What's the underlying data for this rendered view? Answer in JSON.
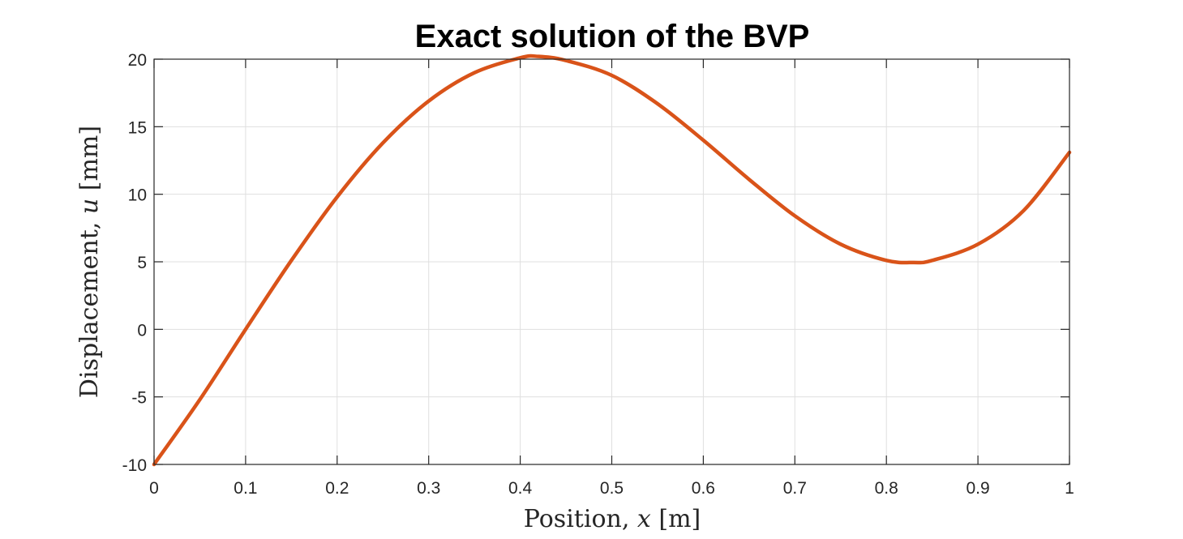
{
  "chart_data": {
    "type": "line",
    "title": "Exact solution of the BVP",
    "xlabel": {
      "text": "Position,",
      "var": "x",
      "unit": "[m]"
    },
    "ylabel": {
      "text": "Displacement,",
      "var": "u",
      "unit": "[mm]"
    },
    "xlim": [
      0,
      1
    ],
    "ylim": [
      -10,
      20
    ],
    "xticks": [
      0,
      0.1,
      0.2,
      0.3,
      0.4,
      0.5,
      0.6,
      0.7,
      0.8,
      0.9,
      1
    ],
    "xtick_labels": [
      "0",
      "0.1",
      "0.2",
      "0.3",
      "0.4",
      "0.5",
      "0.6",
      "0.7",
      "0.8",
      "0.9",
      "1"
    ],
    "yticks": [
      -10,
      -5,
      0,
      5,
      10,
      15,
      20
    ],
    "ytick_labels": [
      "-10",
      "-5",
      "0",
      "5",
      "10",
      "15",
      "20"
    ],
    "grid": true,
    "line_color": "#d95319",
    "series": [
      {
        "x": [
          0,
          0.05,
          0.1,
          0.15,
          0.2,
          0.25,
          0.3,
          0.35,
          0.4,
          0.42,
          0.45,
          0.5,
          0.55,
          0.6,
          0.65,
          0.7,
          0.75,
          0.8,
          0.83,
          0.85,
          0.9,
          0.95,
          1
        ],
        "values": [
          -10,
          -5.2,
          0,
          5.1,
          9.8,
          13.8,
          16.9,
          19.0,
          20.1,
          20.2,
          19.9,
          18.8,
          16.7,
          14.0,
          11.1,
          8.4,
          6.3,
          5.1,
          4.95,
          5.1,
          6.3,
          8.8,
          13.1
        ]
      }
    ]
  }
}
